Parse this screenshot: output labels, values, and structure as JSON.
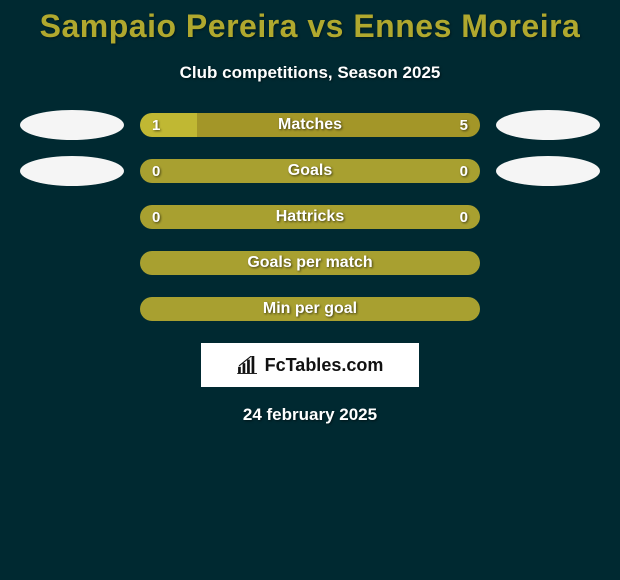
{
  "title": "Sampaio Pereira vs Ennes Moreira",
  "subtitle": "Club competitions, Season 2025",
  "date": "24 february 2025",
  "logo_text": "FcTables.com",
  "colors": {
    "background": "#002931",
    "accent": "#b0a82e",
    "left_fill": "#c0b833",
    "right_fill": "#a39628",
    "neutral_fill": "#a8a030",
    "avatar": "#f5f5f5"
  },
  "rows": [
    {
      "label": "Matches",
      "left_value": "1",
      "right_value": "5",
      "left_pct": 16.7,
      "right_pct": 83.3,
      "show_avatars": true
    },
    {
      "label": "Goals",
      "left_value": "0",
      "right_value": "0",
      "left_pct": 50,
      "right_pct": 50,
      "show_avatars": true
    },
    {
      "label": "Hattricks",
      "left_value": "0",
      "right_value": "0",
      "left_pct": 50,
      "right_pct": 50,
      "show_avatars": false
    },
    {
      "label": "Goals per match",
      "left_value": "",
      "right_value": "",
      "left_pct": 50,
      "right_pct": 50,
      "show_avatars": false
    },
    {
      "label": "Min per goal",
      "left_value": "",
      "right_value": "",
      "left_pct": 50,
      "right_pct": 50,
      "show_avatars": false
    }
  ]
}
